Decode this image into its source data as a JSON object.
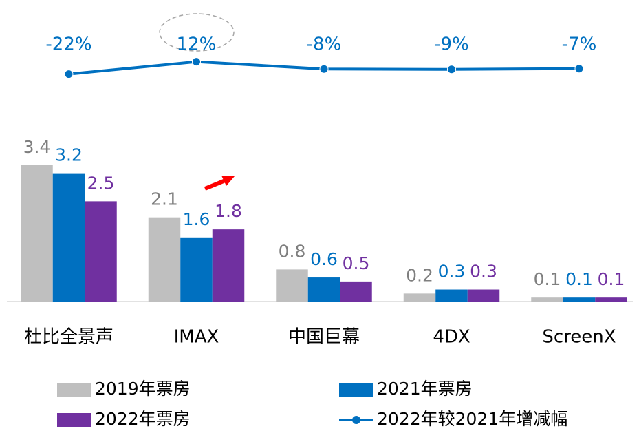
{
  "chart_data": {
    "type": "bar",
    "categories": [
      "杜比全景声",
      "IMAX",
      "中国巨幕",
      "4DX",
      "ScreenX"
    ],
    "series": [
      {
        "name": "2019年票房",
        "color": "#bfbfbf",
        "label_color": "#7f7f7f",
        "values": [
          3.4,
          2.1,
          0.8,
          0.2,
          0.1
        ]
      },
      {
        "name": "2021年票房",
        "color": "#0070c0",
        "label_color": "#0070c0",
        "values": [
          3.2,
          1.6,
          0.6,
          0.3,
          0.1
        ]
      },
      {
        "name": "2022年票房",
        "color": "#7030a0",
        "label_color": "#7030a0",
        "values": [
          2.5,
          1.8,
          0.5,
          0.3,
          0.1
        ]
      },
      {
        "name": "2022年较2021年增减幅",
        "type": "line",
        "axis": "y2",
        "color": "#0070c0",
        "values": [
          -22,
          12,
          -8,
          -9,
          -7
        ],
        "value_labels": [
          "-22%",
          "12%",
          "-8%",
          "-9%",
          "-7%"
        ]
      }
    ],
    "ylim": [
      0,
      4
    ],
    "y2lim": [
      -100,
      100
    ]
  }
}
